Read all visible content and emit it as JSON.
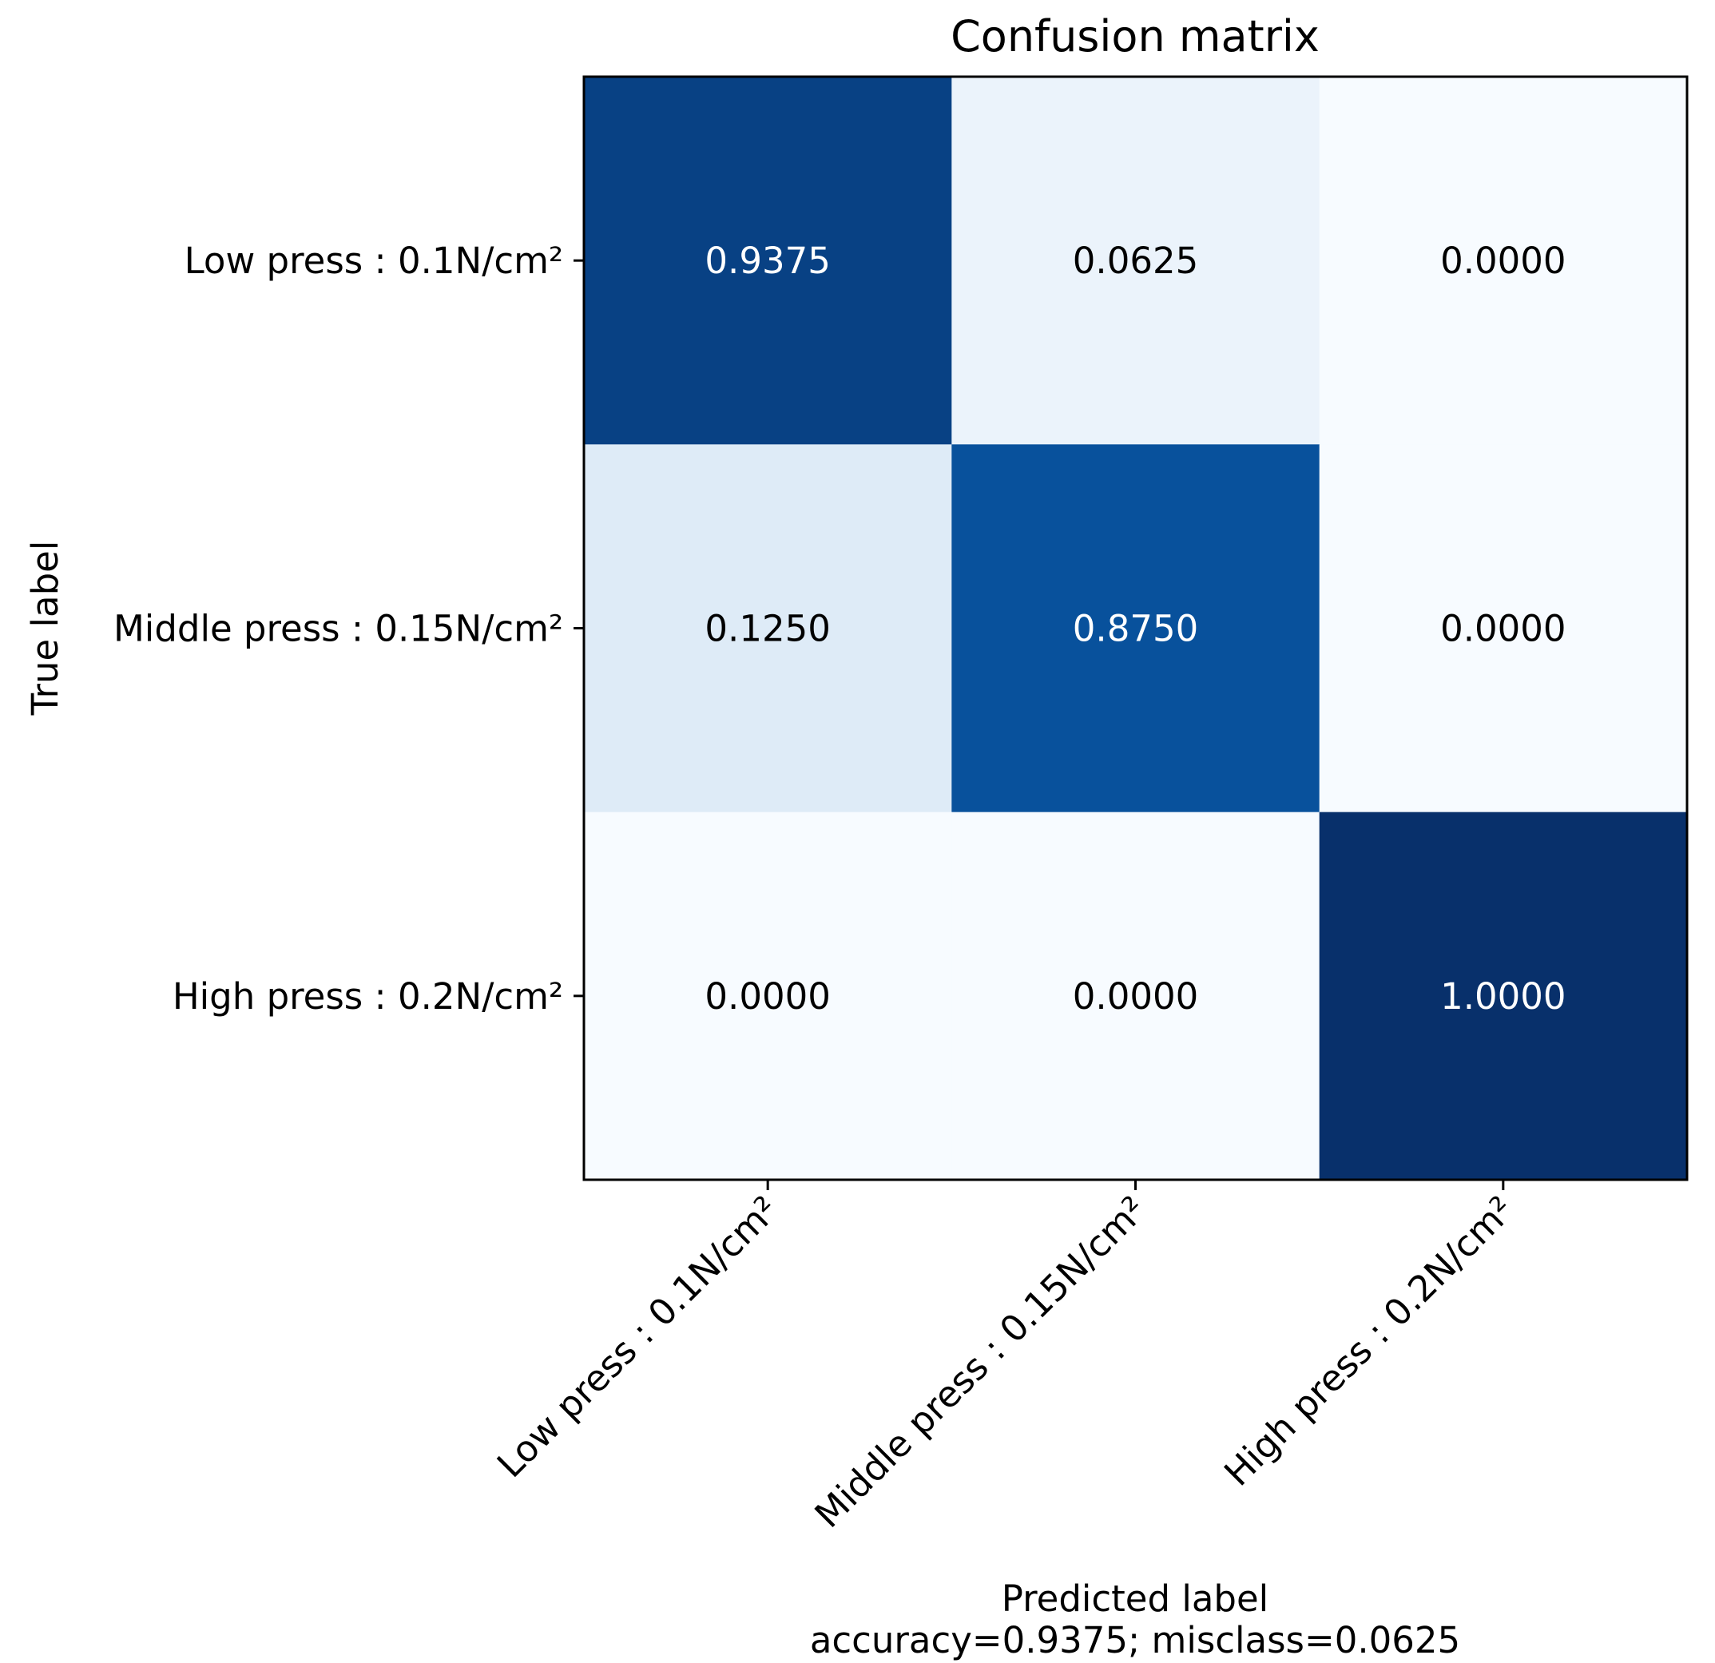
{
  "chart_data": {
    "type": "heatmap",
    "title": "Confusion matrix",
    "ylabel": "True label",
    "xlabel": "Predicted label",
    "summary": "accuracy=0.9375; misclass=0.0625",
    "row_labels": [
      "Low press : 0.1N/cm²",
      "Middle press : 0.15N/cm²",
      "High press : 0.2N/cm²"
    ],
    "col_labels": [
      "Low press : 0.1N/cm²",
      "Middle press : 0.15N/cm²",
      "High press : 0.2N/cm²"
    ],
    "values": [
      [
        0.9375,
        0.0625,
        0.0
      ],
      [
        0.125,
        0.875,
        0.0
      ],
      [
        0.0,
        0.0,
        1.0
      ]
    ],
    "value_format_decimals": 4,
    "colormap": "Blues",
    "colormap_stops": [
      "#f7fbff",
      "#deebf7",
      "#c6dbef",
      "#9ecae1",
      "#6baed6",
      "#4292c6",
      "#2171b5",
      "#08519c",
      "#08306b"
    ],
    "vmin": 0,
    "vmax": 1
  }
}
